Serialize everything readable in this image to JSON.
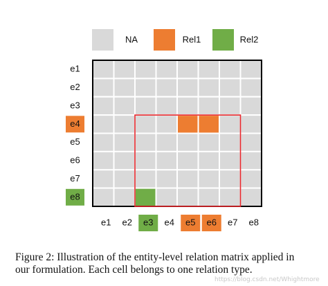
{
  "legend": [
    {
      "label": "NA",
      "color": "#d9d9d9"
    },
    {
      "label": "Rel1",
      "color": "#ed7d31"
    },
    {
      "label": "Rel2",
      "color": "#70ad47"
    }
  ],
  "matrix": {
    "rows": [
      {
        "label": "e1"
      },
      {
        "label": "e2"
      },
      {
        "label": "e3"
      },
      {
        "label": "e4",
        "color": "#ed7d31"
      },
      {
        "label": "e5"
      },
      {
        "label": "e6"
      },
      {
        "label": "e7"
      },
      {
        "label": "e8",
        "color": "#70ad47"
      }
    ],
    "columns": [
      {
        "label": "e1"
      },
      {
        "label": "e2"
      },
      {
        "label": "e3",
        "color": "#70ad47"
      },
      {
        "label": "e4"
      },
      {
        "label": "e5",
        "color": "#ed7d31"
      },
      {
        "label": "e6",
        "color": "#ed7d31"
      },
      {
        "label": "e7"
      },
      {
        "label": "e8"
      }
    ],
    "cells": [
      [
        "NA",
        "NA",
        "NA",
        "NA",
        "NA",
        "NA",
        "NA",
        "NA"
      ],
      [
        "NA",
        "NA",
        "NA",
        "NA",
        "NA",
        "NA",
        "NA",
        "NA"
      ],
      [
        "NA",
        "NA",
        "NA",
        "NA",
        "NA",
        "NA",
        "NA",
        "NA"
      ],
      [
        "NA",
        "NA",
        "NA",
        "NA",
        "Rel1",
        "Rel1",
        "NA",
        "NA"
      ],
      [
        "NA",
        "NA",
        "NA",
        "NA",
        "NA",
        "NA",
        "NA",
        "NA"
      ],
      [
        "NA",
        "NA",
        "NA",
        "NA",
        "NA",
        "NA",
        "NA",
        "NA"
      ],
      [
        "NA",
        "NA",
        "NA",
        "NA",
        "NA",
        "NA",
        "NA",
        "NA"
      ],
      [
        "NA",
        "NA",
        "Rel2",
        "NA",
        "NA",
        "NA",
        "NA",
        "NA"
      ]
    ]
  },
  "caption": [
    "Figure 2: Illustration of the entity-level relation matrix applied in",
    "our formulation. Each cell belongs to one relation type."
  ],
  "watermark": "https://blog.csdn.net/Whightmore"
}
